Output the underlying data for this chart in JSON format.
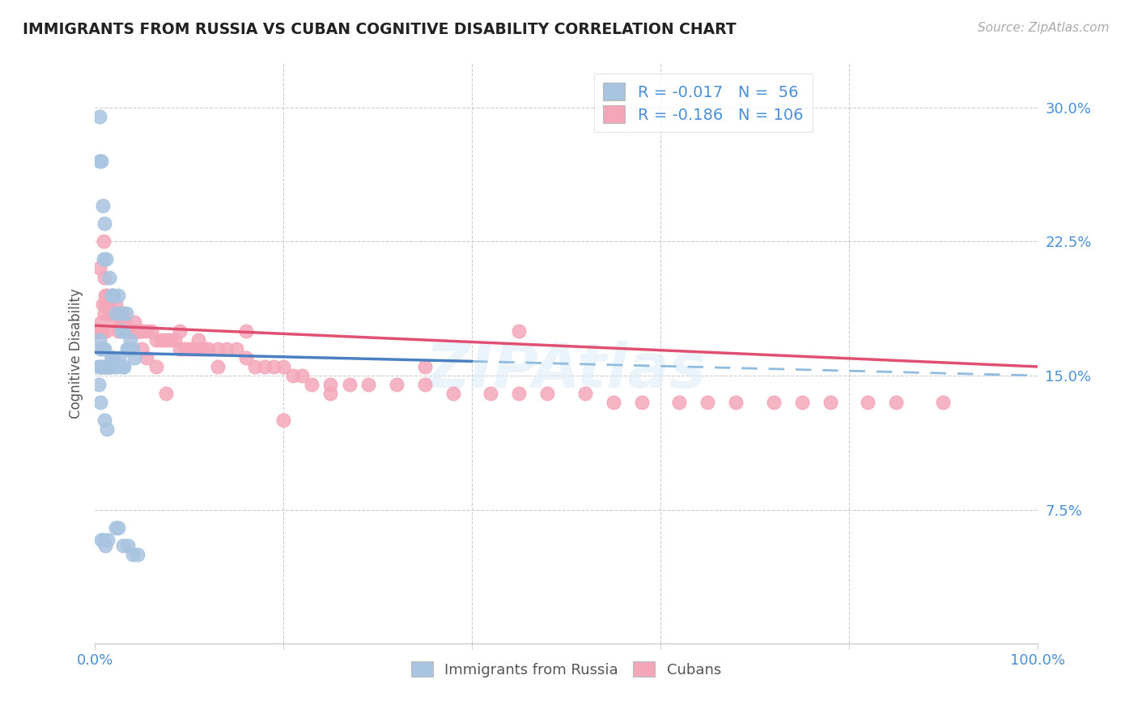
{
  "title": "IMMIGRANTS FROM RUSSIA VS CUBAN COGNITIVE DISABILITY CORRELATION CHART",
  "source_text": "Source: ZipAtlas.com",
  "ylabel": "Cognitive Disability",
  "x_min": 0.0,
  "x_max": 1.0,
  "y_min": 0.0,
  "y_max": 0.325,
  "x_ticks": [
    0.0,
    0.2,
    0.4,
    0.6,
    0.8,
    1.0
  ],
  "x_tick_labels": [
    "0.0%",
    "",
    "",
    "",
    "",
    "100.0%"
  ],
  "y_ticks": [
    0.075,
    0.15,
    0.225,
    0.3
  ],
  "y_tick_labels": [
    "7.5%",
    "15.0%",
    "22.5%",
    "30.0%"
  ],
  "color_russia": "#a8c4e0",
  "color_cuba": "#f4a7b9",
  "trendline_russia_solid_color": "#4a7fc1",
  "trendline_russia_dashed_color": "#90bce0",
  "trendline_cuba_color": "#e05070",
  "watermark": "ZIPAtlas",
  "russia_trendline_x0": 0.0,
  "russia_trendline_y0": 0.163,
  "russia_trendline_x1_solid": 0.4,
  "russia_trendline_y1_solid": 0.158,
  "russia_trendline_x1_dashed": 1.0,
  "russia_trendline_y1_dashed": 0.15,
  "cuba_trendline_x0": 0.0,
  "cuba_trendline_y0": 0.178,
  "cuba_trendline_x1": 1.0,
  "cuba_trendline_y1": 0.155,
  "russia_x": [
    0.003,
    0.004,
    0.005,
    0.005,
    0.005,
    0.006,
    0.006,
    0.006,
    0.007,
    0.007,
    0.007,
    0.008,
    0.008,
    0.009,
    0.009,
    0.009,
    0.01,
    0.01,
    0.01,
    0.011,
    0.011,
    0.012,
    0.012,
    0.013,
    0.013,
    0.014,
    0.015,
    0.015,
    0.016,
    0.017,
    0.018,
    0.018,
    0.019,
    0.02,
    0.021,
    0.022,
    0.023,
    0.025,
    0.026,
    0.027,
    0.028,
    0.029,
    0.03,
    0.031,
    0.033,
    0.034,
    0.035,
    0.038,
    0.04,
    0.042,
    0.022,
    0.025,
    0.03,
    0.035,
    0.04,
    0.045
  ],
  "russia_y": [
    0.155,
    0.145,
    0.295,
    0.27,
    0.17,
    0.165,
    0.155,
    0.135,
    0.27,
    0.155,
    0.058,
    0.245,
    0.165,
    0.215,
    0.155,
    0.058,
    0.235,
    0.165,
    0.125,
    0.155,
    0.055,
    0.215,
    0.155,
    0.155,
    0.12,
    0.058,
    0.205,
    0.155,
    0.155,
    0.155,
    0.195,
    0.16,
    0.16,
    0.195,
    0.155,
    0.185,
    0.155,
    0.195,
    0.16,
    0.185,
    0.175,
    0.155,
    0.175,
    0.155,
    0.185,
    0.165,
    0.165,
    0.17,
    0.165,
    0.16,
    0.065,
    0.065,
    0.055,
    0.055,
    0.05,
    0.05
  ],
  "cuba_x": [
    0.001,
    0.002,
    0.003,
    0.004,
    0.005,
    0.006,
    0.007,
    0.008,
    0.009,
    0.01,
    0.011,
    0.012,
    0.013,
    0.015,
    0.016,
    0.017,
    0.018,
    0.019,
    0.02,
    0.022,
    0.023,
    0.025,
    0.027,
    0.028,
    0.03,
    0.032,
    0.033,
    0.035,
    0.037,
    0.04,
    0.042,
    0.045,
    0.048,
    0.05,
    0.055,
    0.06,
    0.065,
    0.07,
    0.075,
    0.08,
    0.085,
    0.09,
    0.095,
    0.1,
    0.105,
    0.11,
    0.115,
    0.12,
    0.13,
    0.14,
    0.15,
    0.16,
    0.17,
    0.18,
    0.19,
    0.2,
    0.21,
    0.22,
    0.23,
    0.25,
    0.27,
    0.29,
    0.32,
    0.35,
    0.38,
    0.42,
    0.45,
    0.48,
    0.52,
    0.55,
    0.58,
    0.62,
    0.65,
    0.68,
    0.72,
    0.75,
    0.78,
    0.82,
    0.85,
    0.9,
    0.006,
    0.008,
    0.01,
    0.012,
    0.015,
    0.018,
    0.02,
    0.022,
    0.025,
    0.028,
    0.032,
    0.035,
    0.04,
    0.045,
    0.05,
    0.055,
    0.065,
    0.075,
    0.09,
    0.11,
    0.13,
    0.16,
    0.2,
    0.25,
    0.35,
    0.45
  ],
  "cuba_y": [
    0.175,
    0.175,
    0.175,
    0.175,
    0.21,
    0.175,
    0.18,
    0.19,
    0.225,
    0.205,
    0.195,
    0.19,
    0.195,
    0.19,
    0.185,
    0.185,
    0.195,
    0.195,
    0.185,
    0.19,
    0.185,
    0.185,
    0.185,
    0.18,
    0.185,
    0.18,
    0.175,
    0.175,
    0.175,
    0.175,
    0.18,
    0.175,
    0.175,
    0.175,
    0.175,
    0.175,
    0.17,
    0.17,
    0.17,
    0.17,
    0.17,
    0.165,
    0.165,
    0.165,
    0.165,
    0.165,
    0.165,
    0.165,
    0.165,
    0.165,
    0.165,
    0.16,
    0.155,
    0.155,
    0.155,
    0.155,
    0.15,
    0.15,
    0.145,
    0.145,
    0.145,
    0.145,
    0.145,
    0.145,
    0.14,
    0.14,
    0.14,
    0.14,
    0.14,
    0.135,
    0.135,
    0.135,
    0.135,
    0.135,
    0.135,
    0.135,
    0.135,
    0.135,
    0.135,
    0.135,
    0.155,
    0.175,
    0.185,
    0.175,
    0.155,
    0.16,
    0.16,
    0.18,
    0.175,
    0.175,
    0.175,
    0.175,
    0.175,
    0.175,
    0.165,
    0.16,
    0.155,
    0.14,
    0.175,
    0.17,
    0.155,
    0.175,
    0.125,
    0.14,
    0.155,
    0.175
  ]
}
